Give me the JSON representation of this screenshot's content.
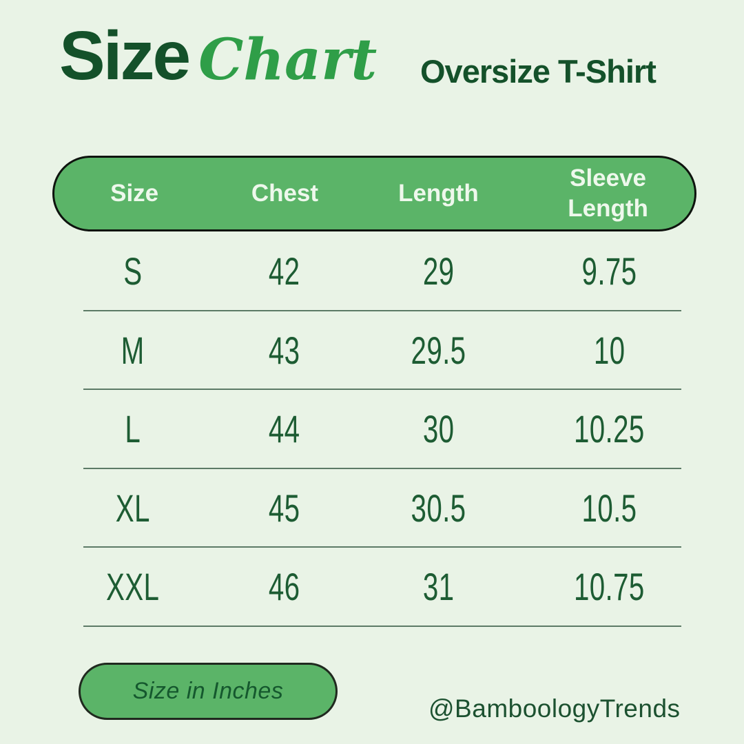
{
  "header": {
    "brand_bold": "Size",
    "brand_script": "Chart",
    "product": "Oversize T-Shirt"
  },
  "table": {
    "columns": [
      "Size",
      "Chest",
      "Length",
      "Sleeve Length"
    ],
    "rows": [
      {
        "size": "S",
        "chest": "42",
        "length": "29",
        "sleeve": "9.75"
      },
      {
        "size": "M",
        "chest": "43",
        "length": "29.5",
        "sleeve": "10"
      },
      {
        "size": "L",
        "chest": "44",
        "length": "30",
        "sleeve": "10.25"
      },
      {
        "size": "XL",
        "chest": "45",
        "length": "30.5",
        "sleeve": "10.5"
      },
      {
        "size": "XXL",
        "chest": "46",
        "length": "31",
        "sleeve": "10.75"
      }
    ]
  },
  "footer": {
    "unit_label": "Size in Inches",
    "handle": "@BamboologyTrends"
  },
  "colors": {
    "background": "#e9f3e6",
    "pill_green": "#5bb468",
    "pill_border": "#0e130e",
    "dark_green_text": "#14512a",
    "script_green": "#2f9e48",
    "row_text_green": "#1d5c33",
    "divider": "#5c7a66",
    "header_label": "#eef8ec"
  },
  "chart_data": {
    "type": "table",
    "title": "Size Chart — Oversize T-Shirt",
    "unit": "inches",
    "columns": [
      "Size",
      "Chest",
      "Length",
      "Sleeve Length"
    ],
    "rows": [
      [
        "S",
        42,
        29,
        9.75
      ],
      [
        "M",
        43,
        29.5,
        10
      ],
      [
        "L",
        44,
        30,
        10.25
      ],
      [
        "XL",
        45,
        30.5,
        10.5
      ],
      [
        "XXL",
        46,
        31,
        10.75
      ]
    ]
  }
}
